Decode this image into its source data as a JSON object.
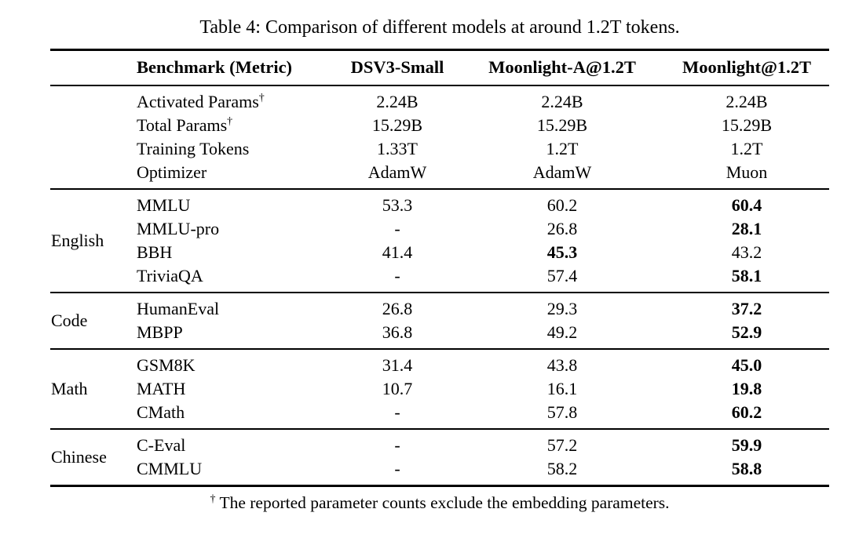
{
  "page": {
    "title": "Table 4: Comparison of different models at around 1.2T tokens."
  },
  "colors": {
    "text": "#000000",
    "background": "#ffffff",
    "rule": "#000000"
  },
  "table": {
    "header": {
      "columns": [
        "Benchmark (Metric)",
        "DSV3-Small",
        "Moonlight-A@1.2T",
        "Moonlight@1.2T"
      ]
    },
    "groups": [
      {
        "label": "",
        "key": "params",
        "rows": [
          {
            "benchmark": "Activated Params",
            "sup": "†",
            "values": [
              {
                "text": "2.24B",
                "bold": false
              },
              {
                "text": "2.24B",
                "bold": false
              },
              {
                "text": "2.24B",
                "bold": false
              }
            ]
          },
          {
            "benchmark": "Total Params",
            "sup": "†",
            "values": [
              {
                "text": "15.29B",
                "bold": false
              },
              {
                "text": "15.29B",
                "bold": false
              },
              {
                "text": "15.29B",
                "bold": false
              }
            ]
          },
          {
            "benchmark": "Training Tokens",
            "values": [
              {
                "text": "1.33T",
                "bold": false
              },
              {
                "text": "1.2T",
                "bold": false
              },
              {
                "text": "1.2T",
                "bold": false
              }
            ]
          },
          {
            "benchmark": "Optimizer",
            "values": [
              {
                "text": "AdamW",
                "bold": false
              },
              {
                "text": "AdamW",
                "bold": false
              },
              {
                "text": "Muon",
                "bold": false
              }
            ]
          }
        ]
      },
      {
        "label": "English",
        "key": "english",
        "rows": [
          {
            "benchmark": "MMLU",
            "values": [
              {
                "text": "53.3",
                "bold": false
              },
              {
                "text": "60.2",
                "bold": false
              },
              {
                "text": "60.4",
                "bold": true
              }
            ]
          },
          {
            "benchmark": "MMLU-pro",
            "values": [
              {
                "text": "-",
                "bold": false
              },
              {
                "text": "26.8",
                "bold": false
              },
              {
                "text": "28.1",
                "bold": true
              }
            ]
          },
          {
            "benchmark": "BBH",
            "values": [
              {
                "text": "41.4",
                "bold": false
              },
              {
                "text": "45.3",
                "bold": true
              },
              {
                "text": "43.2",
                "bold": false
              }
            ]
          },
          {
            "benchmark": "TriviaQA",
            "values": [
              {
                "text": "-",
                "bold": false
              },
              {
                "text": "57.4",
                "bold": false
              },
              {
                "text": "58.1",
                "bold": true
              }
            ]
          }
        ]
      },
      {
        "label": "Code",
        "key": "code",
        "rows": [
          {
            "benchmark": "HumanEval",
            "values": [
              {
                "text": "26.8",
                "bold": false
              },
              {
                "text": "29.3",
                "bold": false
              },
              {
                "text": "37.2",
                "bold": true
              }
            ]
          },
          {
            "benchmark": "MBPP",
            "values": [
              {
                "text": "36.8",
                "bold": false
              },
              {
                "text": "49.2",
                "bold": false
              },
              {
                "text": "52.9",
                "bold": true
              }
            ]
          }
        ]
      },
      {
        "label": "Math",
        "key": "math",
        "rows": [
          {
            "benchmark": "GSM8K",
            "values": [
              {
                "text": "31.4",
                "bold": false
              },
              {
                "text": "43.8",
                "bold": false
              },
              {
                "text": "45.0",
                "bold": true
              }
            ]
          },
          {
            "benchmark": "MATH",
            "values": [
              {
                "text": "10.7",
                "bold": false
              },
              {
                "text": "16.1",
                "bold": false
              },
              {
                "text": "19.8",
                "bold": true
              }
            ]
          },
          {
            "benchmark": "CMath",
            "values": [
              {
                "text": "-",
                "bold": false
              },
              {
                "text": "57.8",
                "bold": false
              },
              {
                "text": "60.2",
                "bold": true
              }
            ]
          }
        ]
      },
      {
        "label": "Chinese",
        "key": "chinese",
        "rows": [
          {
            "benchmark": "C-Eval",
            "values": [
              {
                "text": "-",
                "bold": false
              },
              {
                "text": "57.2",
                "bold": false
              },
              {
                "text": "59.9",
                "bold": true
              }
            ]
          },
          {
            "benchmark": "CMMLU",
            "values": [
              {
                "text": "-",
                "bold": false
              },
              {
                "text": "58.2",
                "bold": false
              },
              {
                "text": "58.8",
                "bold": true
              }
            ]
          }
        ]
      }
    ]
  },
  "footnote": {
    "marker": "†",
    "text": "The reported parameter counts exclude the embedding parameters."
  }
}
